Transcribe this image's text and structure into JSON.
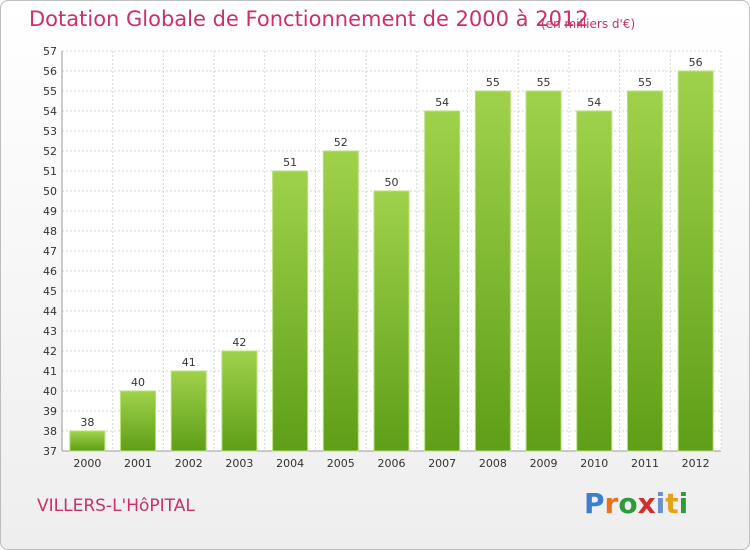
{
  "header": {
    "title": "Dotation Globale de Fonctionnement de 2000 à 2012",
    "subtitle": "(en milliers d'€)"
  },
  "footer": {
    "place": "VILLERS-L'HôPITAL",
    "logo_letters": [
      "P",
      "r",
      "o",
      "x",
      "i",
      "t",
      "i"
    ],
    "logo_colors": [
      "#3a7fd0",
      "#e8731a",
      "#2f9a3a",
      "#d0302a",
      "#6a8fd0",
      "#e8a21a",
      "#2f9a3a"
    ]
  },
  "chart_data": {
    "type": "bar",
    "categories": [
      "2000",
      "2001",
      "2002",
      "2003",
      "2004",
      "2005",
      "2006",
      "2007",
      "2008",
      "2009",
      "2010",
      "2011",
      "2012"
    ],
    "values": [
      38,
      40,
      41,
      42,
      51,
      52,
      50,
      54,
      55,
      55,
      54,
      55,
      56
    ],
    "ylim": [
      37,
      57
    ],
    "yticks": [
      37,
      38,
      39,
      40,
      41,
      42,
      43,
      44,
      45,
      46,
      47,
      48,
      49,
      50,
      51,
      52,
      53,
      54,
      55,
      56,
      57
    ],
    "grid": true,
    "bar_color_top": "#9fd24a",
    "bar_color_bottom": "#5f9e18"
  }
}
